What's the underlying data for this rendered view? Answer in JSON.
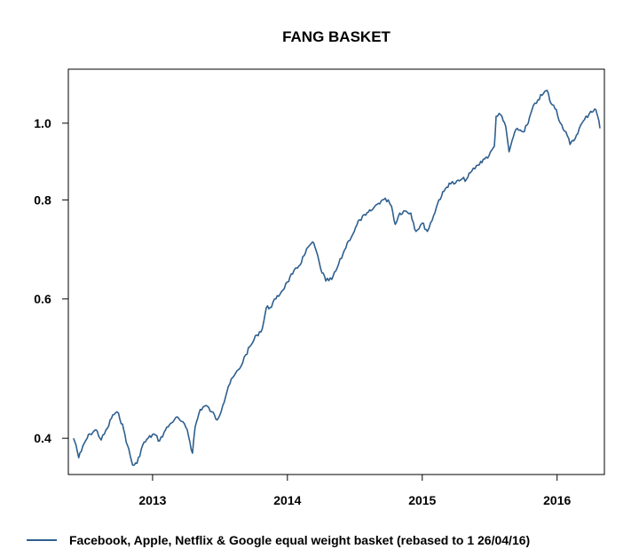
{
  "chart_data": {
    "type": "line",
    "title": "FANG BASKET",
    "xlabel": "",
    "ylabel": "",
    "y_scale": "log",
    "ylim": [
      0.36,
      1.17
    ],
    "xlim": [
      "2012-05-18",
      "2016-05-08"
    ],
    "x_ticks": [
      {
        "date": "2013-01-01",
        "label": "2013"
      },
      {
        "date": "2014-01-01",
        "label": "2014"
      },
      {
        "date": "2015-01-01",
        "label": "2015"
      },
      {
        "date": "2016-01-01",
        "label": "2016"
      }
    ],
    "y_ticks": [
      {
        "value": 0.4,
        "label": "0.4"
      },
      {
        "value": 0.6,
        "label": "0.6"
      },
      {
        "value": 0.8,
        "label": "0.8"
      },
      {
        "value": 1.0,
        "label": "1.0"
      }
    ],
    "grid": false,
    "legend_position": "bottom-left",
    "series": [
      {
        "name": "Facebook, Apple, Netflix & Google equal weight basket (rebased to 1 26/04/16)",
        "color": "#2e5f8e",
        "points": [
          [
            "2012-06-01",
            0.4
          ],
          [
            "2012-06-08",
            0.392
          ],
          [
            "2012-06-15",
            0.378
          ],
          [
            "2012-06-22",
            0.385
          ],
          [
            "2012-07-01",
            0.395
          ],
          [
            "2012-07-15",
            0.405
          ],
          [
            "2012-08-01",
            0.41
          ],
          [
            "2012-08-15",
            0.398
          ],
          [
            "2012-09-01",
            0.412
          ],
          [
            "2012-09-15",
            0.428
          ],
          [
            "2012-10-01",
            0.43
          ],
          [
            "2012-10-15",
            0.41
          ],
          [
            "2012-10-25",
            0.392
          ],
          [
            "2012-11-08",
            0.37
          ],
          [
            "2012-11-20",
            0.372
          ],
          [
            "2012-12-05",
            0.392
          ],
          [
            "2012-12-20",
            0.4
          ],
          [
            "2013-01-05",
            0.405
          ],
          [
            "2013-01-20",
            0.397
          ],
          [
            "2013-02-05",
            0.41
          ],
          [
            "2013-02-20",
            0.418
          ],
          [
            "2013-03-05",
            0.425
          ],
          [
            "2013-03-20",
            0.42
          ],
          [
            "2013-04-05",
            0.41
          ],
          [
            "2013-04-19",
            0.383
          ],
          [
            "2013-04-26",
            0.413
          ],
          [
            "2013-05-10",
            0.435
          ],
          [
            "2013-05-25",
            0.44
          ],
          [
            "2013-06-10",
            0.432
          ],
          [
            "2013-06-25",
            0.422
          ],
          [
            "2013-07-10",
            0.44
          ],
          [
            "2013-07-25",
            0.465
          ],
          [
            "2013-08-10",
            0.48
          ],
          [
            "2013-08-25",
            0.49
          ],
          [
            "2013-09-10",
            0.51
          ],
          [
            "2013-09-25",
            0.525
          ],
          [
            "2013-10-10",
            0.54
          ],
          [
            "2013-10-25",
            0.55
          ],
          [
            "2013-11-05",
            0.585
          ],
          [
            "2013-11-15",
            0.585
          ],
          [
            "2013-12-01",
            0.6
          ],
          [
            "2013-12-15",
            0.612
          ],
          [
            "2014-01-01",
            0.63
          ],
          [
            "2014-01-15",
            0.645
          ],
          [
            "2014-02-01",
            0.66
          ],
          [
            "2014-02-15",
            0.68
          ],
          [
            "2014-03-01",
            0.7
          ],
          [
            "2014-03-10",
            0.708
          ],
          [
            "2014-03-20",
            0.69
          ],
          [
            "2014-04-01",
            0.655
          ],
          [
            "2014-04-15",
            0.632
          ],
          [
            "2014-05-01",
            0.635
          ],
          [
            "2014-05-15",
            0.655
          ],
          [
            "2014-06-01",
            0.685
          ],
          [
            "2014-06-15",
            0.71
          ],
          [
            "2014-07-01",
            0.73
          ],
          [
            "2014-07-15",
            0.755
          ],
          [
            "2014-08-01",
            0.765
          ],
          [
            "2014-08-15",
            0.775
          ],
          [
            "2014-09-01",
            0.79
          ],
          [
            "2014-09-15",
            0.8
          ],
          [
            "2014-10-01",
            0.8
          ],
          [
            "2014-10-10",
            0.785
          ],
          [
            "2014-10-20",
            0.745
          ],
          [
            "2014-11-01",
            0.77
          ],
          [
            "2014-11-15",
            0.775
          ],
          [
            "2014-12-01",
            0.77
          ],
          [
            "2014-12-15",
            0.73
          ],
          [
            "2015-01-01",
            0.748
          ],
          [
            "2015-01-15",
            0.73
          ],
          [
            "2015-02-01",
            0.765
          ],
          [
            "2015-02-15",
            0.8
          ],
          [
            "2015-03-01",
            0.82
          ],
          [
            "2015-03-15",
            0.84
          ],
          [
            "2015-04-01",
            0.84
          ],
          [
            "2015-04-15",
            0.848
          ],
          [
            "2015-05-01",
            0.85
          ],
          [
            "2015-05-15",
            0.87
          ],
          [
            "2015-06-01",
            0.885
          ],
          [
            "2015-06-15",
            0.9
          ],
          [
            "2015-07-01",
            0.91
          ],
          [
            "2015-07-15",
            0.935
          ],
          [
            "2015-07-20",
            1.02
          ],
          [
            "2015-08-01",
            1.025
          ],
          [
            "2015-08-15",
            0.99
          ],
          [
            "2015-08-24",
            0.92
          ],
          [
            "2015-09-01",
            0.95
          ],
          [
            "2015-09-15",
            0.985
          ],
          [
            "2015-10-01",
            0.975
          ],
          [
            "2015-10-15",
            1.0
          ],
          [
            "2015-10-25",
            1.04
          ],
          [
            "2015-11-10",
            1.07
          ],
          [
            "2015-11-25",
            1.09
          ],
          [
            "2015-12-05",
            1.1
          ],
          [
            "2015-12-15",
            1.06
          ],
          [
            "2015-12-30",
            1.04
          ],
          [
            "2016-01-10",
            1.0
          ],
          [
            "2016-01-25",
            0.975
          ],
          [
            "2016-02-05",
            0.94
          ],
          [
            "2016-02-15",
            0.95
          ],
          [
            "2016-03-01",
            0.985
          ],
          [
            "2016-03-15",
            1.01
          ],
          [
            "2016-04-01",
            1.035
          ],
          [
            "2016-04-15",
            1.04
          ],
          [
            "2016-04-20",
            1.02
          ],
          [
            "2016-04-26",
            0.985
          ]
        ]
      }
    ]
  }
}
